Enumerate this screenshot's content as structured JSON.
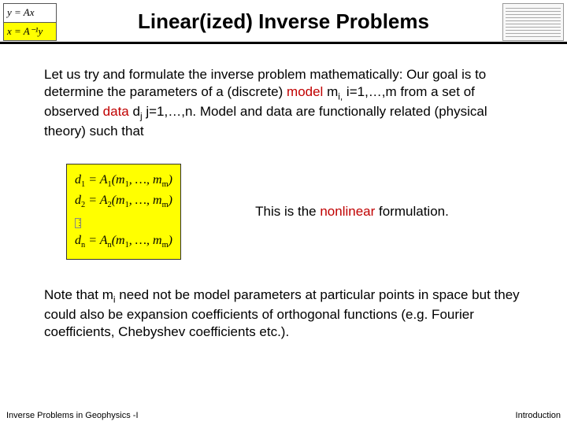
{
  "header": {
    "title": "Linear(ized) Inverse Problems",
    "logo_left": {
      "row1": "y = Ax",
      "row2": "x = A⁻¹y"
    },
    "logo_right": {
      "bars": 10,
      "bar_color": "#aaa"
    }
  },
  "body": {
    "p1_a": "Let us try and formulate the inverse problem mathematically: Our goal is to determine the parameters of a  (discrete) ",
    "p1_model": "model",
    "p1_b": " m",
    "p1_c": " i=1,…,m from a set of observed ",
    "p1_data": "data",
    "p1_d": " d",
    "p1_e": " j=1,…,n. Model and data are functionally related (physical theory) such that",
    "sub_i": "i,",
    "sub_j": "j",
    "eqns": {
      "l1_a": "d",
      "l1_s1": "1",
      "l1_b": " = A",
      "l1_s2": "1",
      "l1_c": "(m",
      "l1_s3": "1",
      "l1_d": ", …, m",
      "l1_s4": "m",
      "l1_e": ")",
      "l2_a": "d",
      "l2_s1": "2",
      "l2_b": " = A",
      "l2_s2": "2",
      "l2_c": "(m",
      "l2_s3": "1",
      "l2_d": ", …, m",
      "l2_s4": "m",
      "l2_e": ")",
      "vdots": "⋮",
      "l3_a": "d",
      "l3_s1": "n",
      "l3_b": " = A",
      "l3_s2": "n",
      "l3_c": "(m",
      "l3_s3": "1",
      "l3_d": ", …, m",
      "l3_s4": "m",
      "l3_e": ")"
    },
    "caption_a": "This is the ",
    "caption_b": "nonlinear",
    "caption_c": " formulation.",
    "p2_a": "Note that m",
    "p2_b": " need not be model parameters at particular points in space but they could also be expansion coefficients of orthogonal functions (e.g. Fourier coefficients, Chebyshev coefficients etc.).",
    "p2_sub": "i"
  },
  "footer": {
    "left": "Inverse Problems in Geophysics -I",
    "right": "Introduction"
  },
  "style": {
    "accent": "#c00000",
    "highlight": "#ffff00",
    "title_fontsize": 26,
    "body_fontsize": 17,
    "footer_fontsize": 11,
    "slide_w": 720,
    "slide_h": 540
  }
}
